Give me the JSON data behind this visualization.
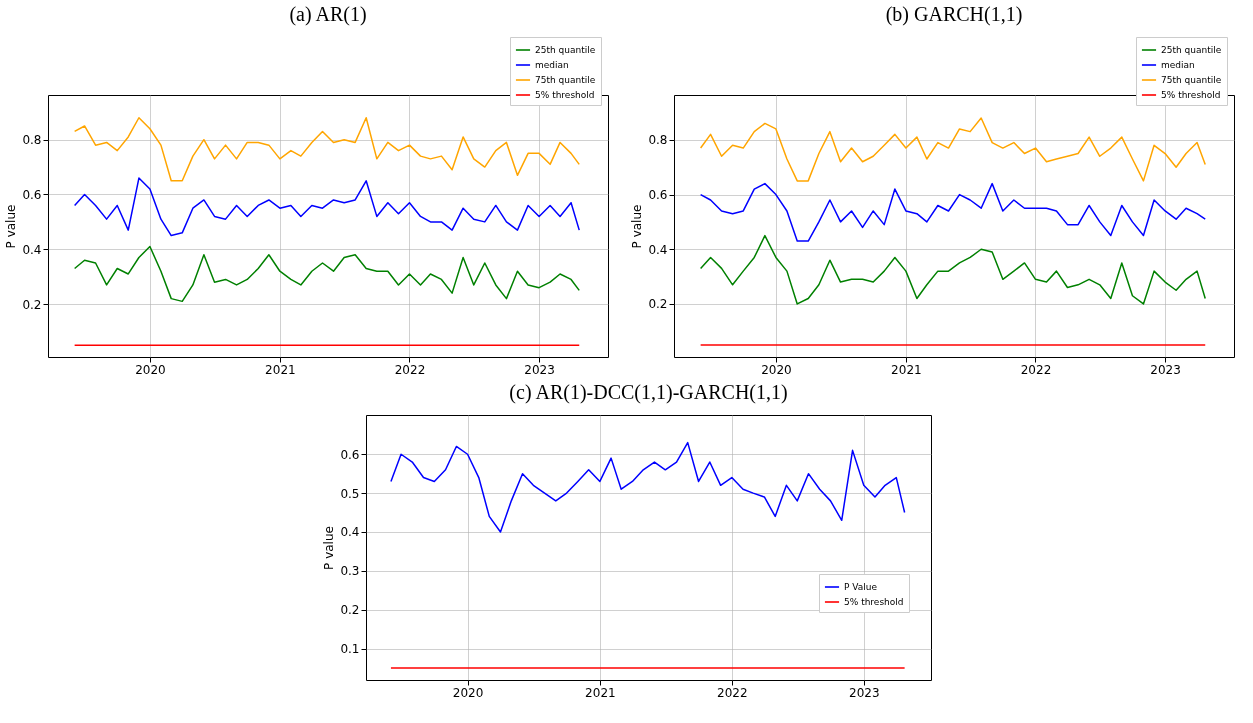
{
  "chart_data": [
    {
      "type": "line",
      "title": "(a) AR(1)",
      "ylabel": "P value",
      "xlim": [
        "2019-03-20",
        "2023-07-14"
      ],
      "xticks": [
        "2020",
        "2021",
        "2022",
        "2023"
      ],
      "ylim": [
        0.007,
        0.963
      ],
      "yticks": [
        0.2,
        0.4,
        0.6,
        0.8
      ],
      "grid": true,
      "legend": "top right",
      "line_style": "solid",
      "x": [
        "2019-06-03",
        "2019-07-01",
        "2019-08-01",
        "2019-09-01",
        "2019-10-01",
        "2019-11-01",
        "2019-12-01",
        "2020-01-01",
        "2020-02-01",
        "2020-03-01",
        "2020-04-01",
        "2020-05-01",
        "2020-06-01",
        "2020-07-01",
        "2020-08-01",
        "2020-09-01",
        "2020-10-01",
        "2020-11-01",
        "2020-12-01",
        "2021-01-01",
        "2021-02-01",
        "2021-03-01",
        "2021-04-01",
        "2021-05-01",
        "2021-06-01",
        "2021-07-01",
        "2021-08-01",
        "2021-09-01",
        "2021-10-01",
        "2021-11-01",
        "2021-12-01",
        "2022-01-01",
        "2022-02-01",
        "2022-03-01",
        "2022-04-01",
        "2022-05-01",
        "2022-06-01",
        "2022-07-01",
        "2022-08-01",
        "2022-09-01",
        "2022-10-01",
        "2022-11-01",
        "2022-12-01",
        "2023-01-01",
        "2023-02-01",
        "2023-03-01",
        "2023-04-01",
        "2023-04-24"
      ],
      "series": [
        {
          "name": "25th quantile",
          "color": "#008000",
          "values": [
            0.33,
            0.36,
            0.35,
            0.27,
            0.33,
            0.31,
            0.37,
            0.41,
            0.32,
            0.22,
            0.21,
            0.27,
            0.38,
            0.28,
            0.29,
            0.27,
            0.29,
            0.33,
            0.38,
            0.32,
            0.29,
            0.27,
            0.32,
            0.35,
            0.32,
            0.37,
            0.38,
            0.33,
            0.32,
            0.32,
            0.27,
            0.31,
            0.27,
            0.31,
            0.29,
            0.24,
            0.37,
            0.27,
            0.35,
            0.27,
            0.22,
            0.32,
            0.27,
            0.26,
            0.28,
            0.31,
            0.29,
            0.25
          ]
        },
        {
          "name": "median",
          "color": "#0000ff",
          "values": [
            0.56,
            0.6,
            0.56,
            0.51,
            0.56,
            0.47,
            0.66,
            0.62,
            0.51,
            0.45,
            0.46,
            0.55,
            0.58,
            0.52,
            0.51,
            0.56,
            0.52,
            0.56,
            0.58,
            0.55,
            0.56,
            0.52,
            0.56,
            0.55,
            0.58,
            0.57,
            0.58,
            0.65,
            0.52,
            0.57,
            0.53,
            0.57,
            0.52,
            0.5,
            0.5,
            0.47,
            0.55,
            0.51,
            0.5,
            0.56,
            0.5,
            0.47,
            0.56,
            0.52,
            0.56,
            0.52,
            0.57,
            0.47
          ]
        },
        {
          "name": "75th quantile",
          "color": "#ffa500",
          "values": [
            0.83,
            0.85,
            0.78,
            0.79,
            0.76,
            0.81,
            0.88,
            0.84,
            0.78,
            0.65,
            0.65,
            0.74,
            0.8,
            0.73,
            0.78,
            0.73,
            0.79,
            0.79,
            0.78,
            0.73,
            0.76,
            0.74,
            0.79,
            0.83,
            0.79,
            0.8,
            0.79,
            0.88,
            0.73,
            0.79,
            0.76,
            0.78,
            0.74,
            0.73,
            0.74,
            0.69,
            0.81,
            0.73,
            0.7,
            0.76,
            0.79,
            0.67,
            0.75,
            0.75,
            0.71,
            0.79,
            0.75,
            0.71
          ]
        },
        {
          "name": "5% threshold",
          "color": "#ff0000",
          "x": [
            "2019-06-03",
            "2023-04-24"
          ],
          "values": [
            0.05,
            0.05
          ]
        }
      ]
    },
    {
      "type": "line",
      "title": "(b) GARCH(1,1)",
      "ylabel": "P value",
      "xlim": [
        "2019-03-20",
        "2023-07-14"
      ],
      "xticks": [
        "2020",
        "2021",
        "2022",
        "2023"
      ],
      "ylim": [
        0.006,
        0.964
      ],
      "yticks": [
        0.2,
        0.4,
        0.6,
        0.8
      ],
      "grid": true,
      "legend": "top right",
      "line_style": "solid",
      "x": [
        "2019-06-03",
        "2019-07-01",
        "2019-08-01",
        "2019-09-01",
        "2019-10-01",
        "2019-11-01",
        "2019-12-01",
        "2020-01-01",
        "2020-02-01",
        "2020-03-01",
        "2020-04-01",
        "2020-05-01",
        "2020-06-01",
        "2020-07-01",
        "2020-08-01",
        "2020-09-01",
        "2020-10-01",
        "2020-11-01",
        "2020-12-01",
        "2021-01-01",
        "2021-02-01",
        "2021-03-01",
        "2021-04-01",
        "2021-05-01",
        "2021-06-01",
        "2021-07-01",
        "2021-08-01",
        "2021-09-01",
        "2021-10-01",
        "2021-11-01",
        "2021-12-01",
        "2022-01-01",
        "2022-02-01",
        "2022-03-01",
        "2022-04-01",
        "2022-05-01",
        "2022-06-01",
        "2022-07-01",
        "2022-08-01",
        "2022-09-01",
        "2022-10-01",
        "2022-11-01",
        "2022-12-01",
        "2023-01-01",
        "2023-02-01",
        "2023-03-01",
        "2023-04-01",
        "2023-04-24"
      ],
      "series": [
        {
          "name": "25th quantile",
          "color": "#008000",
          "values": [
            0.33,
            0.37,
            0.33,
            0.27,
            0.32,
            0.37,
            0.45,
            0.37,
            0.32,
            0.2,
            0.22,
            0.27,
            0.36,
            0.28,
            0.29,
            0.29,
            0.28,
            0.32,
            0.37,
            0.32,
            0.22,
            0.27,
            0.32,
            0.32,
            0.35,
            0.37,
            0.4,
            0.39,
            0.29,
            0.32,
            0.35,
            0.29,
            0.28,
            0.32,
            0.26,
            0.27,
            0.29,
            0.27,
            0.22,
            0.35,
            0.23,
            0.2,
            0.32,
            0.28,
            0.25,
            0.29,
            0.32,
            0.22
          ]
        },
        {
          "name": "median",
          "color": "#0000ff",
          "values": [
            0.6,
            0.58,
            0.54,
            0.53,
            0.54,
            0.62,
            0.64,
            0.6,
            0.54,
            0.43,
            0.43,
            0.5,
            0.58,
            0.5,
            0.54,
            0.48,
            0.54,
            0.49,
            0.62,
            0.54,
            0.53,
            0.5,
            0.56,
            0.54,
            0.6,
            0.58,
            0.55,
            0.64,
            0.54,
            0.58,
            0.55,
            0.55,
            0.55,
            0.54,
            0.49,
            0.49,
            0.56,
            0.5,
            0.45,
            0.56,
            0.5,
            0.45,
            0.58,
            0.54,
            0.51,
            0.55,
            0.53,
            0.51
          ]
        },
        {
          "name": "75th quantile",
          "color": "#ffa500",
          "values": [
            0.77,
            0.82,
            0.74,
            0.78,
            0.77,
            0.83,
            0.86,
            0.84,
            0.73,
            0.65,
            0.65,
            0.75,
            0.83,
            0.72,
            0.77,
            0.72,
            0.74,
            0.78,
            0.82,
            0.77,
            0.81,
            0.73,
            0.79,
            0.77,
            0.84,
            0.83,
            0.88,
            0.79,
            0.77,
            0.79,
            0.75,
            0.77,
            0.72,
            0.73,
            0.74,
            0.75,
            0.81,
            0.74,
            0.77,
            0.81,
            0.73,
            0.65,
            0.78,
            0.75,
            0.7,
            0.75,
            0.79,
            0.71
          ]
        },
        {
          "name": "5% threshold",
          "color": "#ff0000",
          "x": [
            "2019-06-03",
            "2023-04-24"
          ],
          "values": [
            0.05,
            0.05
          ]
        }
      ]
    },
    {
      "type": "line",
      "title": "(c) AR(1)-DCC(1,1)-GARCH(1,1)",
      "ylabel": "P value",
      "xlim": [
        "2019-03-26",
        "2023-07-06"
      ],
      "xticks": [
        "2020",
        "2021",
        "2022",
        "2023"
      ],
      "ylim": [
        0.019,
        0.701
      ],
      "yticks": [
        0.1,
        0.2,
        0.3,
        0.4,
        0.5,
        0.6
      ],
      "grid": true,
      "legend": "right",
      "line_style": "solid",
      "x": [
        "2019-06-03",
        "2019-07-01",
        "2019-08-01",
        "2019-09-01",
        "2019-10-01",
        "2019-11-01",
        "2019-12-01",
        "2020-01-01",
        "2020-02-01",
        "2020-03-01",
        "2020-04-01",
        "2020-05-01",
        "2020-06-01",
        "2020-07-01",
        "2020-08-01",
        "2020-09-01",
        "2020-10-01",
        "2020-11-01",
        "2020-12-01",
        "2021-01-01",
        "2021-02-01",
        "2021-03-01",
        "2021-04-01",
        "2021-05-01",
        "2021-06-01",
        "2021-07-01",
        "2021-08-01",
        "2021-09-01",
        "2021-10-01",
        "2021-11-01",
        "2021-12-01",
        "2022-01-01",
        "2022-02-01",
        "2022-03-01",
        "2022-04-01",
        "2022-05-01",
        "2022-06-01",
        "2022-07-01",
        "2022-08-01",
        "2022-09-01",
        "2022-10-01",
        "2022-11-01",
        "2022-12-01",
        "2023-01-01",
        "2023-02-01",
        "2023-03-01",
        "2023-04-01",
        "2023-04-24"
      ],
      "series": [
        {
          "name": "P Value",
          "color": "#0000ff",
          "values": [
            0.53,
            0.6,
            0.58,
            0.54,
            0.53,
            0.56,
            0.62,
            0.6,
            0.54,
            0.44,
            0.4,
            0.48,
            0.55,
            0.52,
            0.5,
            0.48,
            0.5,
            0.53,
            0.56,
            0.53,
            0.59,
            0.51,
            0.53,
            0.56,
            0.58,
            0.56,
            0.58,
            0.63,
            0.53,
            0.58,
            0.52,
            0.54,
            0.51,
            0.5,
            0.49,
            0.44,
            0.52,
            0.48,
            0.55,
            0.51,
            0.48,
            0.43,
            0.61,
            0.52,
            0.49,
            0.52,
            0.54,
            0.45
          ]
        },
        {
          "name": "5% threshold",
          "color": "#ff0000",
          "x": [
            "2019-06-03",
            "2023-04-24"
          ],
          "values": [
            0.05,
            0.05
          ]
        }
      ]
    }
  ]
}
